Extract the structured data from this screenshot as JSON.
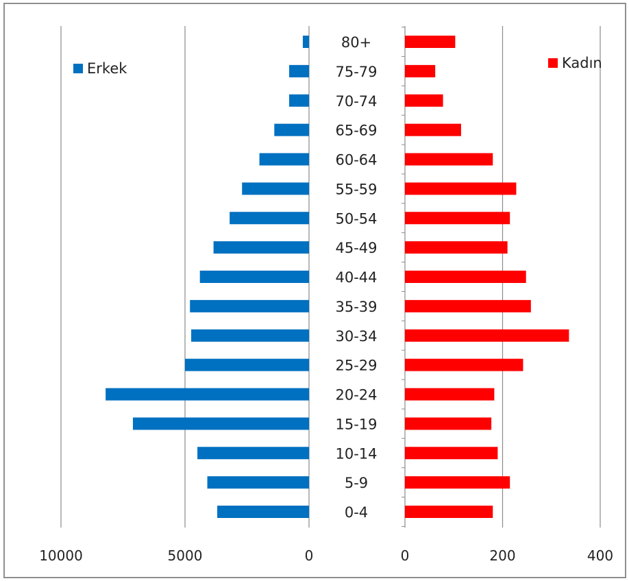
{
  "chart_data": {
    "type": "bar",
    "orientation": "horizontal",
    "layout": "population-pyramid",
    "categories": [
      "80+",
      "75-79",
      "70-74",
      "65-69",
      "60-64",
      "55-59",
      "50-54",
      "45-49",
      "40-44",
      "35-39",
      "30-34",
      "25-29",
      "20-24",
      "15-19",
      "10-14",
      "5-9",
      "0-4"
    ],
    "series": [
      {
        "name": "Erkek",
        "color": "#0070C0",
        "values": [
          250,
          800,
          800,
          1400,
          2000,
          2700,
          3200,
          3850,
          4400,
          4800,
          4750,
          5000,
          8200,
          7100,
          4500,
          4100,
          3700
        ],
        "xlim": [
          0,
          10000
        ],
        "ticks": [
          "0",
          "5000",
          "10000"
        ],
        "direction": "left"
      },
      {
        "name": "Kadın",
        "color": "#FF0000",
        "values": [
          103,
          62,
          78,
          115,
          180,
          228,
          215,
          210,
          248,
          258,
          336,
          242,
          183,
          177,
          190,
          215,
          180
        ],
        "xlim": [
          0,
          400
        ],
        "ticks": [
          "0",
          "200",
          "400"
        ],
        "direction": "right"
      }
    ],
    "grid": true,
    "legend": [
      "top-left",
      "top-right"
    ]
  }
}
